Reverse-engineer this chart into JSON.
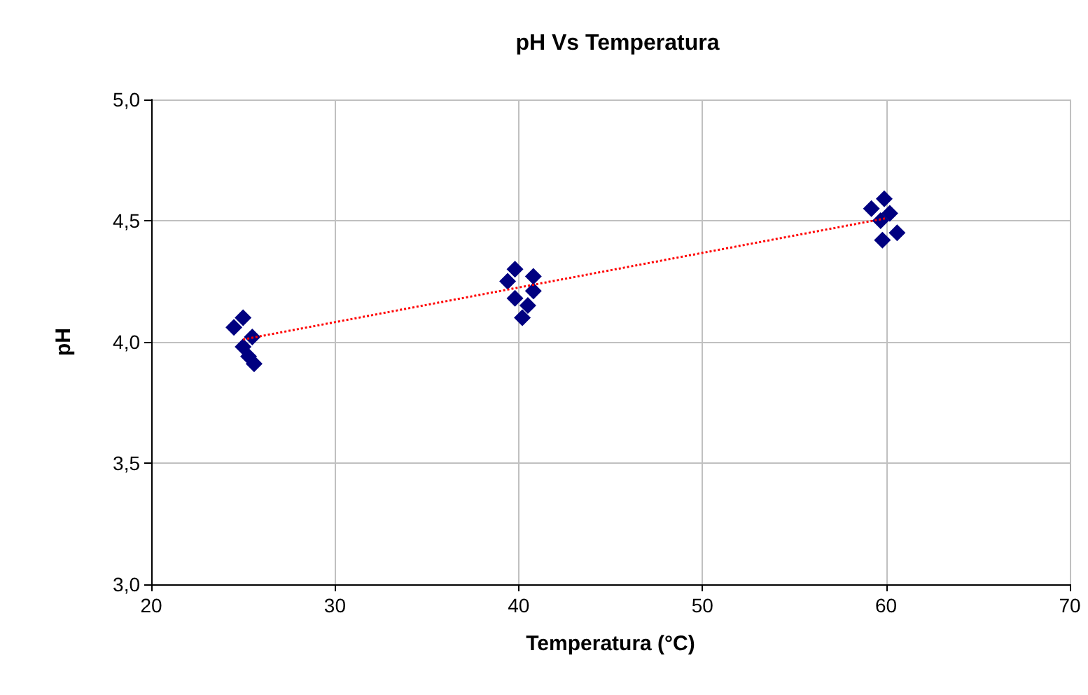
{
  "chart_data": {
    "type": "scatter",
    "title": "pH Vs Temperatura",
    "xlabel": "Temperatura (°C)",
    "ylabel": "pH",
    "xlim": [
      20,
      70
    ],
    "xticks": [
      20,
      30,
      40,
      50,
      60,
      70
    ],
    "ylim": [
      3,
      5
    ],
    "yticks": [
      {
        "value": 3,
        "label": "3,0"
      },
      {
        "value": 3.5,
        "label": "3,5"
      },
      {
        "value": 4,
        "label": "4,0"
      },
      {
        "value": 4.5,
        "label": "4,5"
      },
      {
        "value": 5,
        "label": "5,0"
      }
    ],
    "grid": true,
    "marker": "diamond",
    "series": [
      {
        "color": "#000080",
        "x": [
          24.5,
          25.0,
          25.5,
          25.0,
          25.3,
          25.6,
          39.4,
          39.8,
          39.8,
          40.8,
          40.8,
          40.5,
          40.2,
          59.2,
          59.9,
          59.7,
          60.2,
          59.8,
          60.6
        ],
        "values": [
          4.06,
          4.1,
          4.02,
          3.98,
          3.94,
          3.91,
          4.25,
          4.3,
          4.18,
          4.27,
          4.21,
          4.15,
          4.1,
          4.55,
          4.59,
          4.5,
          4.53,
          4.42,
          4.45
        ]
      },
      {
        "type": "line",
        "color": "#ff0000",
        "line_style": "dotted",
        "marker": "none",
        "x": [
          25,
          60
        ],
        "values": [
          4.01,
          4.51
        ]
      }
    ]
  }
}
